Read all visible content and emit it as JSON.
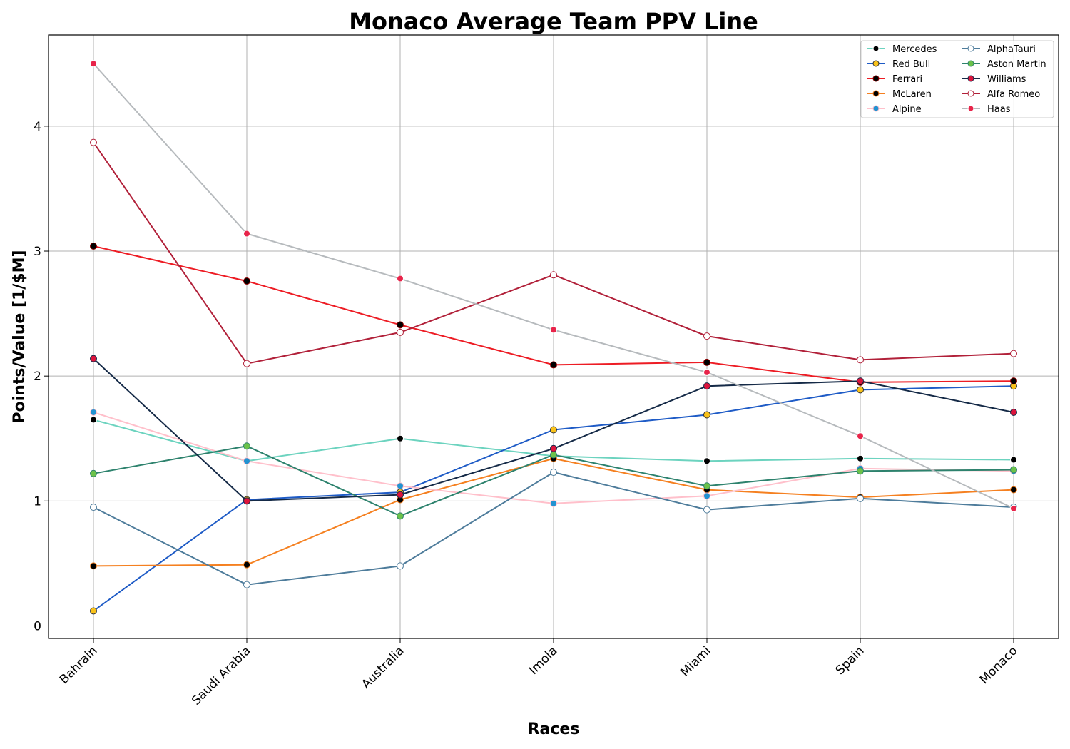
{
  "chart_data": {
    "type": "line",
    "title": "Monaco Average Team PPV Line",
    "xlabel": "Races",
    "ylabel": "Points/Value [1/$M]",
    "categories": [
      "Bahrain",
      "Saudi Arabia",
      "Australia",
      "Imola",
      "Miami",
      "Spain",
      "Monaco"
    ],
    "yticks": [
      0,
      1,
      2,
      3,
      4
    ],
    "ylim": [
      -0.1,
      4.73
    ],
    "grid": true,
    "legend_position": "top-right",
    "legend_columns": 2,
    "series": [
      {
        "name": "Mercedes",
        "color": "#6cd3bf",
        "marker_face": "#000000",
        "marker_edge": "#ffffff",
        "values": [
          1.65,
          1.32,
          1.5,
          1.36,
          1.32,
          1.34,
          1.33
        ]
      },
      {
        "name": "Red Bull",
        "color": "#1e5bc6",
        "marker_face": "#f9c21a",
        "marker_edge": "#333333",
        "values": [
          0.12,
          1.01,
          1.07,
          1.57,
          1.69,
          1.89,
          1.92
        ]
      },
      {
        "name": "Ferrari",
        "color": "#ed1c24",
        "marker_face": "#000000",
        "marker_edge": "#8b0000",
        "values": [
          3.04,
          2.76,
          2.41,
          2.09,
          2.11,
          1.95,
          1.96
        ]
      },
      {
        "name": "McLaren",
        "color": "#f58020",
        "marker_face": "#000000",
        "marker_edge": "#f58020",
        "values": [
          0.48,
          0.49,
          1.01,
          1.34,
          1.09,
          1.03,
          1.09
        ]
      },
      {
        "name": "Alpine",
        "color": "#ffc0cb",
        "marker_face": "#2293d1",
        "marker_edge": "#ffc0cb",
        "values": [
          1.71,
          1.32,
          1.12,
          0.98,
          1.04,
          1.26,
          1.24
        ]
      },
      {
        "name": "AlphaTauri",
        "color": "#4e7c9b",
        "marker_face": "#ffffff",
        "marker_edge": "#4e7c9b",
        "values": [
          0.95,
          0.33,
          0.48,
          1.23,
          0.93,
          1.02,
          0.95
        ]
      },
      {
        "name": "Aston Martin",
        "color": "#2d826d",
        "marker_face": "#6cc24a",
        "marker_edge": "#2d826d",
        "values": [
          1.22,
          1.44,
          0.88,
          1.37,
          1.12,
          1.24,
          1.25
        ]
      },
      {
        "name": "Williams",
        "color": "#152a47",
        "marker_face": "#dc143c",
        "marker_edge": "#152a47",
        "values": [
          2.14,
          1.0,
          1.05,
          1.42,
          1.92,
          1.96,
          1.71
        ]
      },
      {
        "name": "Alfa Romeo",
        "color": "#b12039",
        "marker_face": "#ffffff",
        "marker_edge": "#b12039",
        "values": [
          3.87,
          2.1,
          2.35,
          2.81,
          2.32,
          2.13,
          2.18
        ]
      },
      {
        "name": "Haas",
        "color": "#b6babd",
        "marker_face": "#e8244a",
        "marker_edge": "#ffffff",
        "values": [
          4.5,
          3.14,
          2.78,
          2.37,
          2.03,
          1.52,
          0.94
        ]
      }
    ]
  }
}
